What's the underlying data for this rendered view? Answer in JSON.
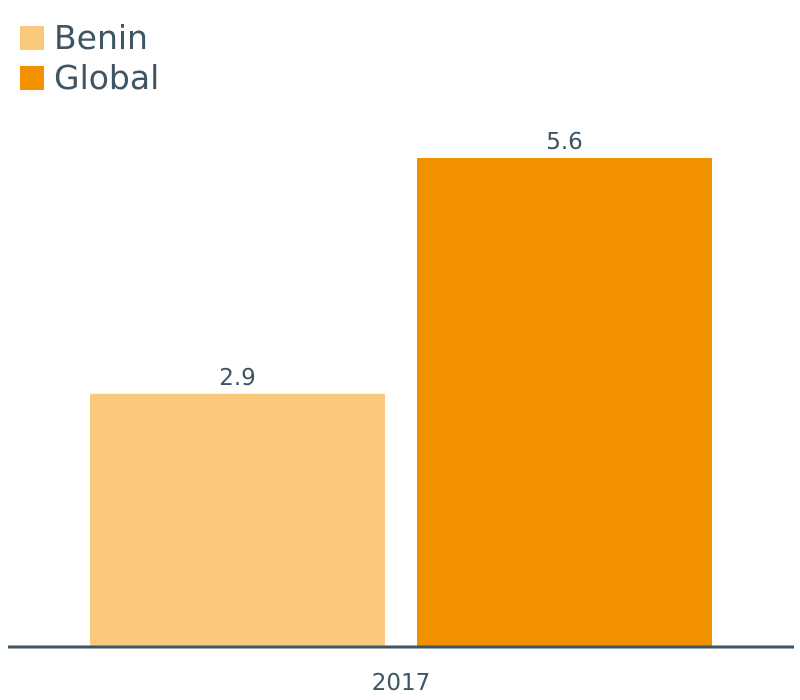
{
  "chart_data": {
    "type": "bar",
    "categories": [
      "2017"
    ],
    "series": [
      {
        "name": "Benin",
        "values": [
          2.9
        ],
        "color": "#fbc97c",
        "value_labels": [
          "2.9"
        ]
      },
      {
        "name": "Global",
        "values": [
          5.6
        ],
        "color": "#f29100",
        "value_labels": [
          "5.6"
        ]
      }
    ],
    "title": "",
    "xlabel": "",
    "ylabel": "",
    "ylim": [
      0,
      5.6
    ],
    "grid": false,
    "legend_position": "top-left",
    "axis_color": "#3f5563"
  }
}
